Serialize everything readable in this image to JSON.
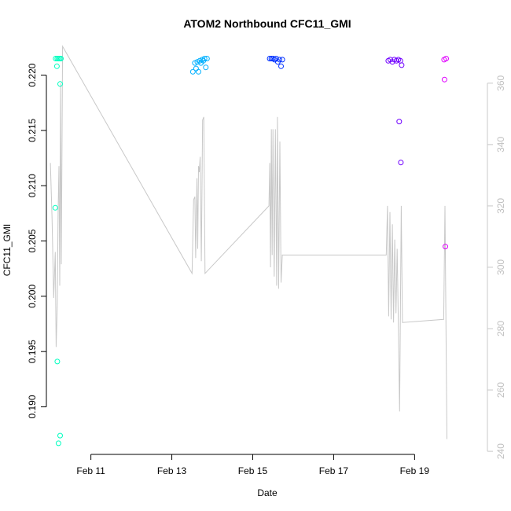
{
  "chart_data": {
    "type": "scatter",
    "title": "ATOM2 Northbound CFC11_GMI",
    "xlabel": "Date",
    "ylabel": "CFC11_GMI",
    "x_ticks": [
      "Feb 11",
      "Feb 13",
      "Feb 15",
      "Feb 17",
      "Feb 19"
    ],
    "x_tick_days": [
      11,
      13,
      15,
      17,
      19
    ],
    "xlim_days": [
      9.9,
      20.8
    ],
    "ylim": [
      0.1857,
      0.2226
    ],
    "y_ticks": [
      0.19,
      0.195,
      0.2,
      0.205,
      0.21,
      0.215,
      0.22
    ],
    "y_tick_labels": [
      "0.190",
      "0.195",
      "0.200",
      "0.205",
      "0.210",
      "0.215",
      "0.220"
    ],
    "secondary_y": {
      "ylim": [
        239,
        372
      ],
      "ticks": [
        240,
        260,
        280,
        300,
        320,
        340,
        360
      ],
      "tick_labels": [
        "240",
        "260",
        "280",
        "300",
        "320",
        "340",
        "360"
      ],
      "color": "#c0c0c0"
    },
    "points": [
      {
        "x": 10.13,
        "y": 0.2215,
        "color": "#00FFC0"
      },
      {
        "x": 10.17,
        "y": 0.2215,
        "color": "#00FFC0"
      },
      {
        "x": 10.2,
        "y": 0.2215,
        "color": "#00FFC0"
      },
      {
        "x": 10.23,
        "y": 0.2215,
        "color": "#00FFC0"
      },
      {
        "x": 10.26,
        "y": 0.2215,
        "color": "#00FFC0"
      },
      {
        "x": 10.16,
        "y": 0.2208,
        "color": "#00FFC0"
      },
      {
        "x": 10.24,
        "y": 0.2192,
        "color": "#00FFC0"
      },
      {
        "x": 10.12,
        "y": 0.208,
        "color": "#00FFC0"
      },
      {
        "x": 10.17,
        "y": 0.1941,
        "color": "#00FFC0"
      },
      {
        "x": 10.24,
        "y": 0.1874,
        "color": "#00FFC0"
      },
      {
        "x": 10.2,
        "y": 0.1867,
        "color": "#00FFC0"
      },
      {
        "x": 13.52,
        "y": 0.2203,
        "color": "#00B0FF"
      },
      {
        "x": 13.57,
        "y": 0.2211,
        "color": "#00B0FF"
      },
      {
        "x": 13.6,
        "y": 0.2206,
        "color": "#00B0FF"
      },
      {
        "x": 13.63,
        "y": 0.2212,
        "color": "#00B0FF"
      },
      {
        "x": 13.66,
        "y": 0.2203,
        "color": "#00B0FF"
      },
      {
        "x": 13.69,
        "y": 0.2213,
        "color": "#00B0FF"
      },
      {
        "x": 13.72,
        "y": 0.2211,
        "color": "#00B0FF"
      },
      {
        "x": 13.75,
        "y": 0.2214,
        "color": "#00B0FF"
      },
      {
        "x": 13.78,
        "y": 0.2213,
        "color": "#00B0FF"
      },
      {
        "x": 13.81,
        "y": 0.2215,
        "color": "#00B0FF"
      },
      {
        "x": 13.84,
        "y": 0.2207,
        "color": "#00B0FF"
      },
      {
        "x": 13.87,
        "y": 0.2215,
        "color": "#00B0FF"
      },
      {
        "x": 15.42,
        "y": 0.2215,
        "color": "#0030FF"
      },
      {
        "x": 15.46,
        "y": 0.2215,
        "color": "#0030FF"
      },
      {
        "x": 15.5,
        "y": 0.2215,
        "color": "#0030FF"
      },
      {
        "x": 15.54,
        "y": 0.2214,
        "color": "#0030FF"
      },
      {
        "x": 15.58,
        "y": 0.2215,
        "color": "#0030FF"
      },
      {
        "x": 15.62,
        "y": 0.2212,
        "color": "#0030FF"
      },
      {
        "x": 15.66,
        "y": 0.2214,
        "color": "#0030FF"
      },
      {
        "x": 15.7,
        "y": 0.2208,
        "color": "#0030FF"
      },
      {
        "x": 15.73,
        "y": 0.2214,
        "color": "#0030FF"
      },
      {
        "x": 18.35,
        "y": 0.2213,
        "color": "#7000FF"
      },
      {
        "x": 18.4,
        "y": 0.2214,
        "color": "#7000FF"
      },
      {
        "x": 18.45,
        "y": 0.2212,
        "color": "#7000FF"
      },
      {
        "x": 18.5,
        "y": 0.2214,
        "color": "#7000FF"
      },
      {
        "x": 18.55,
        "y": 0.2213,
        "color": "#7000FF"
      },
      {
        "x": 18.6,
        "y": 0.2214,
        "color": "#7000FF"
      },
      {
        "x": 18.65,
        "y": 0.2213,
        "color": "#7000FF"
      },
      {
        "x": 18.68,
        "y": 0.2209,
        "color": "#7000FF"
      },
      {
        "x": 18.62,
        "y": 0.2158,
        "color": "#7000FF"
      },
      {
        "x": 18.66,
        "y": 0.2121,
        "color": "#7000FF"
      },
      {
        "x": 19.73,
        "y": 0.2214,
        "color": "#E000FF"
      },
      {
        "x": 19.78,
        "y": 0.2215,
        "color": "#E000FF"
      },
      {
        "x": 19.74,
        "y": 0.2196,
        "color": "#E000FF"
      },
      {
        "x": 19.76,
        "y": 0.2045,
        "color": "#E000FF"
      }
    ],
    "line_color": "#c8c8c8",
    "line": [
      [
        10.0,
        334
      ],
      [
        10.04,
        316
      ],
      [
        10.08,
        290
      ],
      [
        10.12,
        305
      ],
      [
        10.14,
        274
      ],
      [
        10.17,
        288
      ],
      [
        10.19,
        318
      ],
      [
        10.21,
        333
      ],
      [
        10.23,
        294
      ],
      [
        10.25,
        360
      ],
      [
        10.27,
        301
      ],
      [
        10.3,
        372
      ],
      [
        13.5,
        298
      ],
      [
        13.54,
        322
      ],
      [
        13.57,
        323
      ],
      [
        13.59,
        303
      ],
      [
        13.62,
        329
      ],
      [
        13.64,
        306
      ],
      [
        13.66,
        333
      ],
      [
        13.68,
        331
      ],
      [
        13.7,
        336
      ],
      [
        13.73,
        302
      ],
      [
        13.76,
        348
      ],
      [
        13.79,
        349
      ],
      [
        13.82,
        298
      ],
      [
        15.4,
        320
      ],
      [
        15.42,
        334
      ],
      [
        15.44,
        300
      ],
      [
        15.46,
        345
      ],
      [
        15.48,
        304
      ],
      [
        15.5,
        345
      ],
      [
        15.53,
        297
      ],
      [
        15.56,
        345
      ],
      [
        15.59,
        294
      ],
      [
        15.61,
        349
      ],
      [
        15.64,
        293
      ],
      [
        15.67,
        341
      ],
      [
        15.7,
        295
      ],
      [
        15.73,
        304
      ],
      [
        18.3,
        304
      ],
      [
        18.33,
        320
      ],
      [
        18.36,
        284
      ],
      [
        18.39,
        318
      ],
      [
        18.42,
        283
      ],
      [
        18.45,
        314
      ],
      [
        18.48,
        282
      ],
      [
        18.51,
        309
      ],
      [
        18.54,
        285
      ],
      [
        18.57,
        306
      ],
      [
        18.6,
        280
      ],
      [
        18.63,
        253
      ],
      [
        18.67,
        320
      ],
      [
        18.7,
        282
      ],
      [
        19.72,
        283
      ],
      [
        19.75,
        320
      ],
      [
        19.8,
        244
      ]
    ]
  }
}
